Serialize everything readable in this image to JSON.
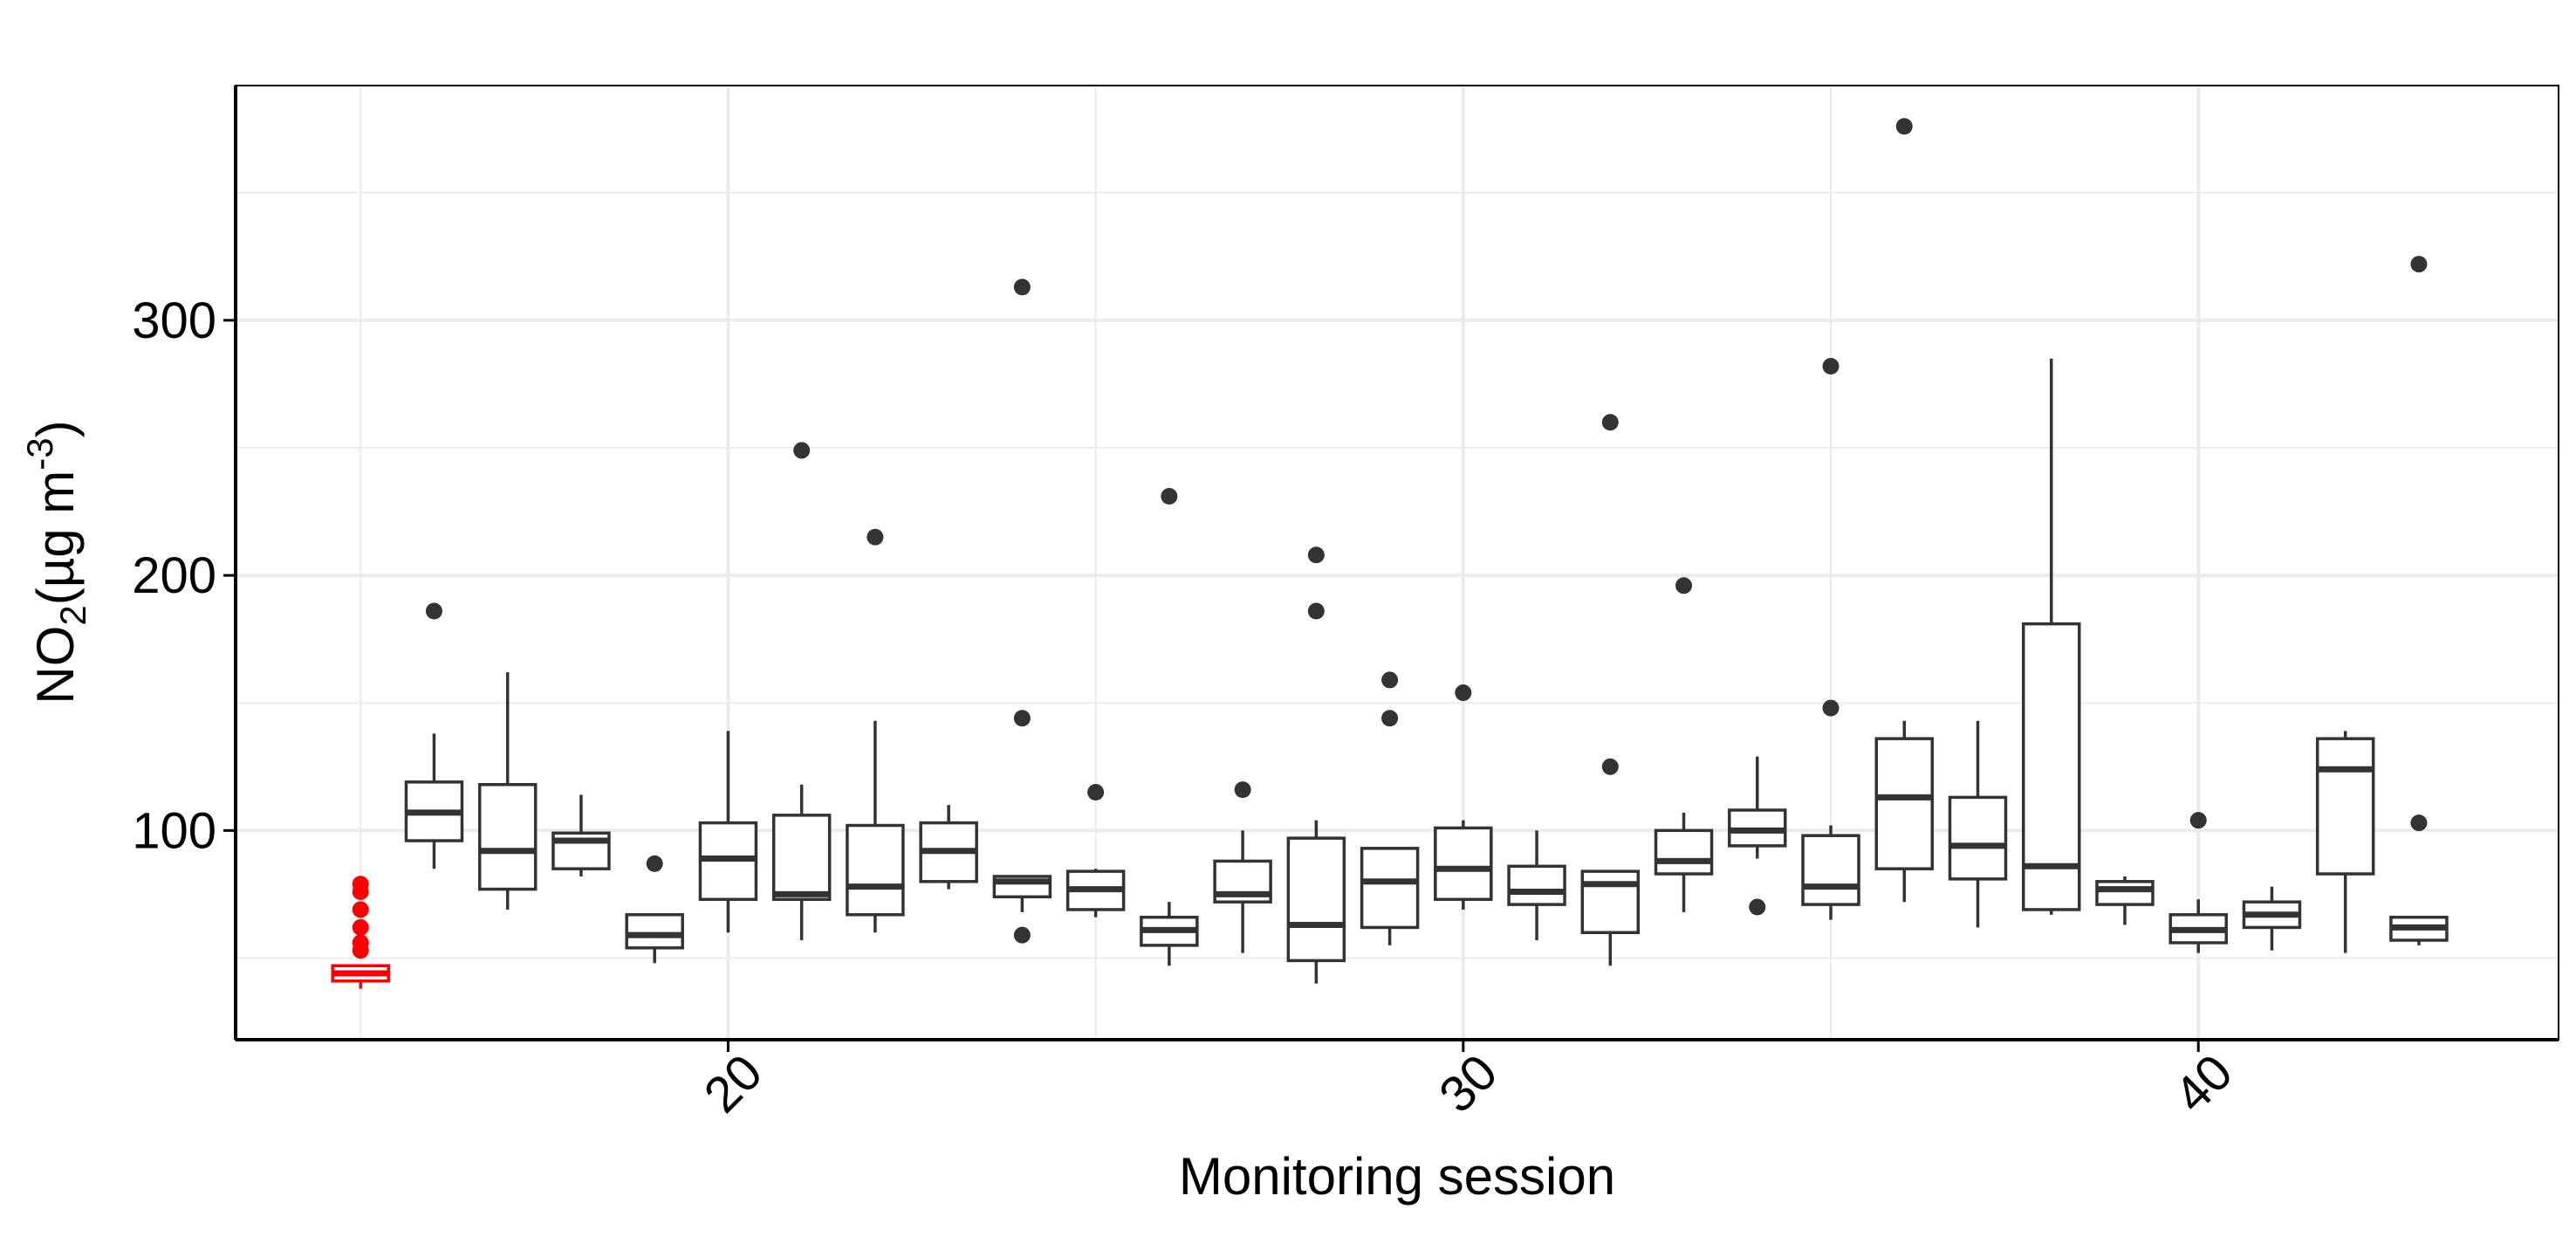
{
  "chart_data": {
    "type": "boxplot",
    "title": "",
    "xlabel": "Monitoring session",
    "ylabel": "NO2(µg m-3)",
    "ylabel_parts": {
      "main": "NO",
      "sub": "2",
      "unit_open": "(µg m",
      "sup": "-3",
      "unit_close": ")"
    },
    "xlim": [
      13.3,
      44.9
    ],
    "ylim": [
      18,
      392
    ],
    "x_ticks": [
      20,
      30,
      40
    ],
    "y_ticks": [
      100,
      200,
      300
    ],
    "x_minor_ticks": [
      15,
      25,
      35
    ],
    "y_minor_ticks": [
      50,
      150,
      250,
      350
    ],
    "grid": true,
    "colors": {
      "box": "#333333",
      "highlight": "#ff0000",
      "grid": "#ebebeb",
      "axis": "#000000"
    },
    "boxes": [
      {
        "x": 15,
        "lower": 38,
        "q1": 41,
        "median": 44,
        "q3": 47,
        "upper": 47,
        "outliers": [
          53,
          56,
          62,
          69,
          76,
          79
        ],
        "highlight": true
      },
      {
        "x": 16,
        "lower": 85,
        "q1": 96,
        "median": 107,
        "q3": 119,
        "upper": 138,
        "outliers": [
          186
        ]
      },
      {
        "x": 17,
        "lower": 69,
        "q1": 77,
        "median": 92,
        "q3": 118,
        "upper": 162,
        "outliers": []
      },
      {
        "x": 18,
        "lower": 82,
        "q1": 85,
        "median": 96,
        "q3": 99,
        "upper": 114,
        "outliers": []
      },
      {
        "x": 19,
        "lower": 48,
        "q1": 54,
        "median": 59,
        "q3": 67,
        "upper": 67,
        "outliers": [
          87
        ]
      },
      {
        "x": 20,
        "lower": 60,
        "q1": 73,
        "median": 89,
        "q3": 103,
        "upper": 139,
        "outliers": []
      },
      {
        "x": 21,
        "lower": 57,
        "q1": 73,
        "median": 75,
        "q3": 106,
        "upper": 118,
        "outliers": [
          249
        ]
      },
      {
        "x": 22,
        "lower": 60,
        "q1": 67,
        "median": 78,
        "q3": 102,
        "upper": 143,
        "outliers": [
          215
        ]
      },
      {
        "x": 23,
        "lower": 77,
        "q1": 80,
        "median": 92,
        "q3": 103,
        "upper": 110,
        "outliers": []
      },
      {
        "x": 24,
        "lower": 68,
        "q1": 74,
        "median": 80,
        "q3": 82,
        "upper": 82,
        "outliers": [
          59,
          144,
          313
        ]
      },
      {
        "x": 25,
        "lower": 66,
        "q1": 69,
        "median": 77,
        "q3": 84,
        "upper": 85,
        "outliers": [
          115
        ]
      },
      {
        "x": 26,
        "lower": 47,
        "q1": 55,
        "median": 61,
        "q3": 66,
        "upper": 72,
        "outliers": [
          231
        ]
      },
      {
        "x": 27,
        "lower": 52,
        "q1": 72,
        "median": 75,
        "q3": 88,
        "upper": 100,
        "outliers": [
          116
        ]
      },
      {
        "x": 28,
        "lower": 40,
        "q1": 49,
        "median": 63,
        "q3": 97,
        "upper": 104,
        "outliers": [
          186,
          208
        ]
      },
      {
        "x": 29,
        "lower": 55,
        "q1": 62,
        "median": 80,
        "q3": 93,
        "upper": 93,
        "outliers": [
          144,
          159
        ]
      },
      {
        "x": 30,
        "lower": 69,
        "q1": 73,
        "median": 85,
        "q3": 101,
        "upper": 104,
        "outliers": [
          154
        ]
      },
      {
        "x": 31,
        "lower": 57,
        "q1": 71,
        "median": 76,
        "q3": 86,
        "upper": 100,
        "outliers": []
      },
      {
        "x": 32,
        "lower": 47,
        "q1": 60,
        "median": 79,
        "q3": 84,
        "upper": 84,
        "outliers": [
          125,
          260
        ]
      },
      {
        "x": 33,
        "lower": 68,
        "q1": 83,
        "median": 88,
        "q3": 100,
        "upper": 107,
        "outliers": [
          196
        ]
      },
      {
        "x": 34,
        "lower": 89,
        "q1": 94,
        "median": 100,
        "q3": 108,
        "upper": 129,
        "outliers": [
          70
        ]
      },
      {
        "x": 35,
        "lower": 65,
        "q1": 71,
        "median": 78,
        "q3": 98,
        "upper": 102,
        "outliers": [
          148,
          282
        ]
      },
      {
        "x": 36,
        "lower": 72,
        "q1": 85,
        "median": 113,
        "q3": 136,
        "upper": 143,
        "outliers": [
          376
        ]
      },
      {
        "x": 37,
        "lower": 62,
        "q1": 81,
        "median": 94,
        "q3": 113,
        "upper": 143,
        "outliers": []
      },
      {
        "x": 38,
        "lower": 67,
        "q1": 69,
        "median": 86,
        "q3": 181,
        "upper": 285,
        "outliers": []
      },
      {
        "x": 39,
        "lower": 63,
        "q1": 71,
        "median": 77,
        "q3": 80,
        "upper": 82,
        "outliers": []
      },
      {
        "x": 40,
        "lower": 52,
        "q1": 56,
        "median": 61,
        "q3": 67,
        "upper": 73,
        "outliers": [
          104
        ]
      },
      {
        "x": 41,
        "lower": 53,
        "q1": 62,
        "median": 67,
        "q3": 72,
        "upper": 78,
        "outliers": []
      },
      {
        "x": 42,
        "lower": 52,
        "q1": 83,
        "median": 124,
        "q3": 136,
        "upper": 139,
        "outliers": []
      },
      {
        "x": 43,
        "lower": 55,
        "q1": 57,
        "median": 62,
        "q3": 66,
        "upper": 66,
        "outliers": [
          103,
          322
        ]
      }
    ]
  }
}
